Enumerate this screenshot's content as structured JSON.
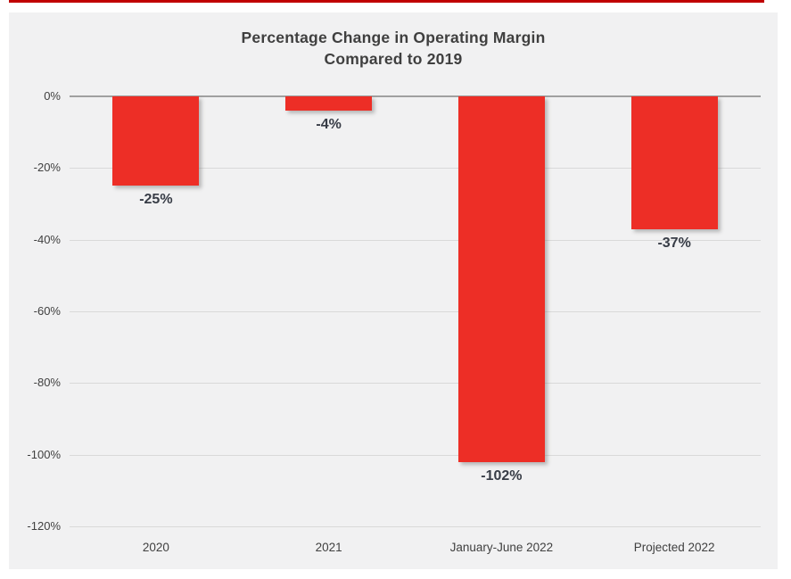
{
  "chart_data": {
    "type": "bar",
    "title": "Percentage Change in Operating Margin",
    "subtitle": "Compared to 2019",
    "categories": [
      "2020",
      "2021",
      "January-June 2022",
      "Projected 2022"
    ],
    "values": [
      -25,
      -4,
      -102,
      -37
    ],
    "data_labels": [
      "-25%",
      "-4%",
      "-102%",
      "-37%"
    ],
    "yticks": [
      0,
      -20,
      -40,
      -60,
      -80,
      -100,
      -120
    ],
    "ytick_labels": [
      "0%",
      "-20%",
      "-40%",
      "-60%",
      "-80%",
      "-100%",
      "-120%"
    ],
    "ylim": [
      0,
      -120
    ],
    "xlabel": "",
    "ylabel": "",
    "grid": true,
    "legend": false,
    "colors": {
      "bar": "#ED2E26",
      "chart_background": "#F1F1F2",
      "page_background": "#FFFFFF",
      "accent_line": "#C00000",
      "title_text": "#3F3F3F",
      "axis_text": "#404040",
      "data_label_text": "#373C46",
      "gridline": "#D9D9D9",
      "zero_axis_line": "#A0A0A0"
    }
  }
}
